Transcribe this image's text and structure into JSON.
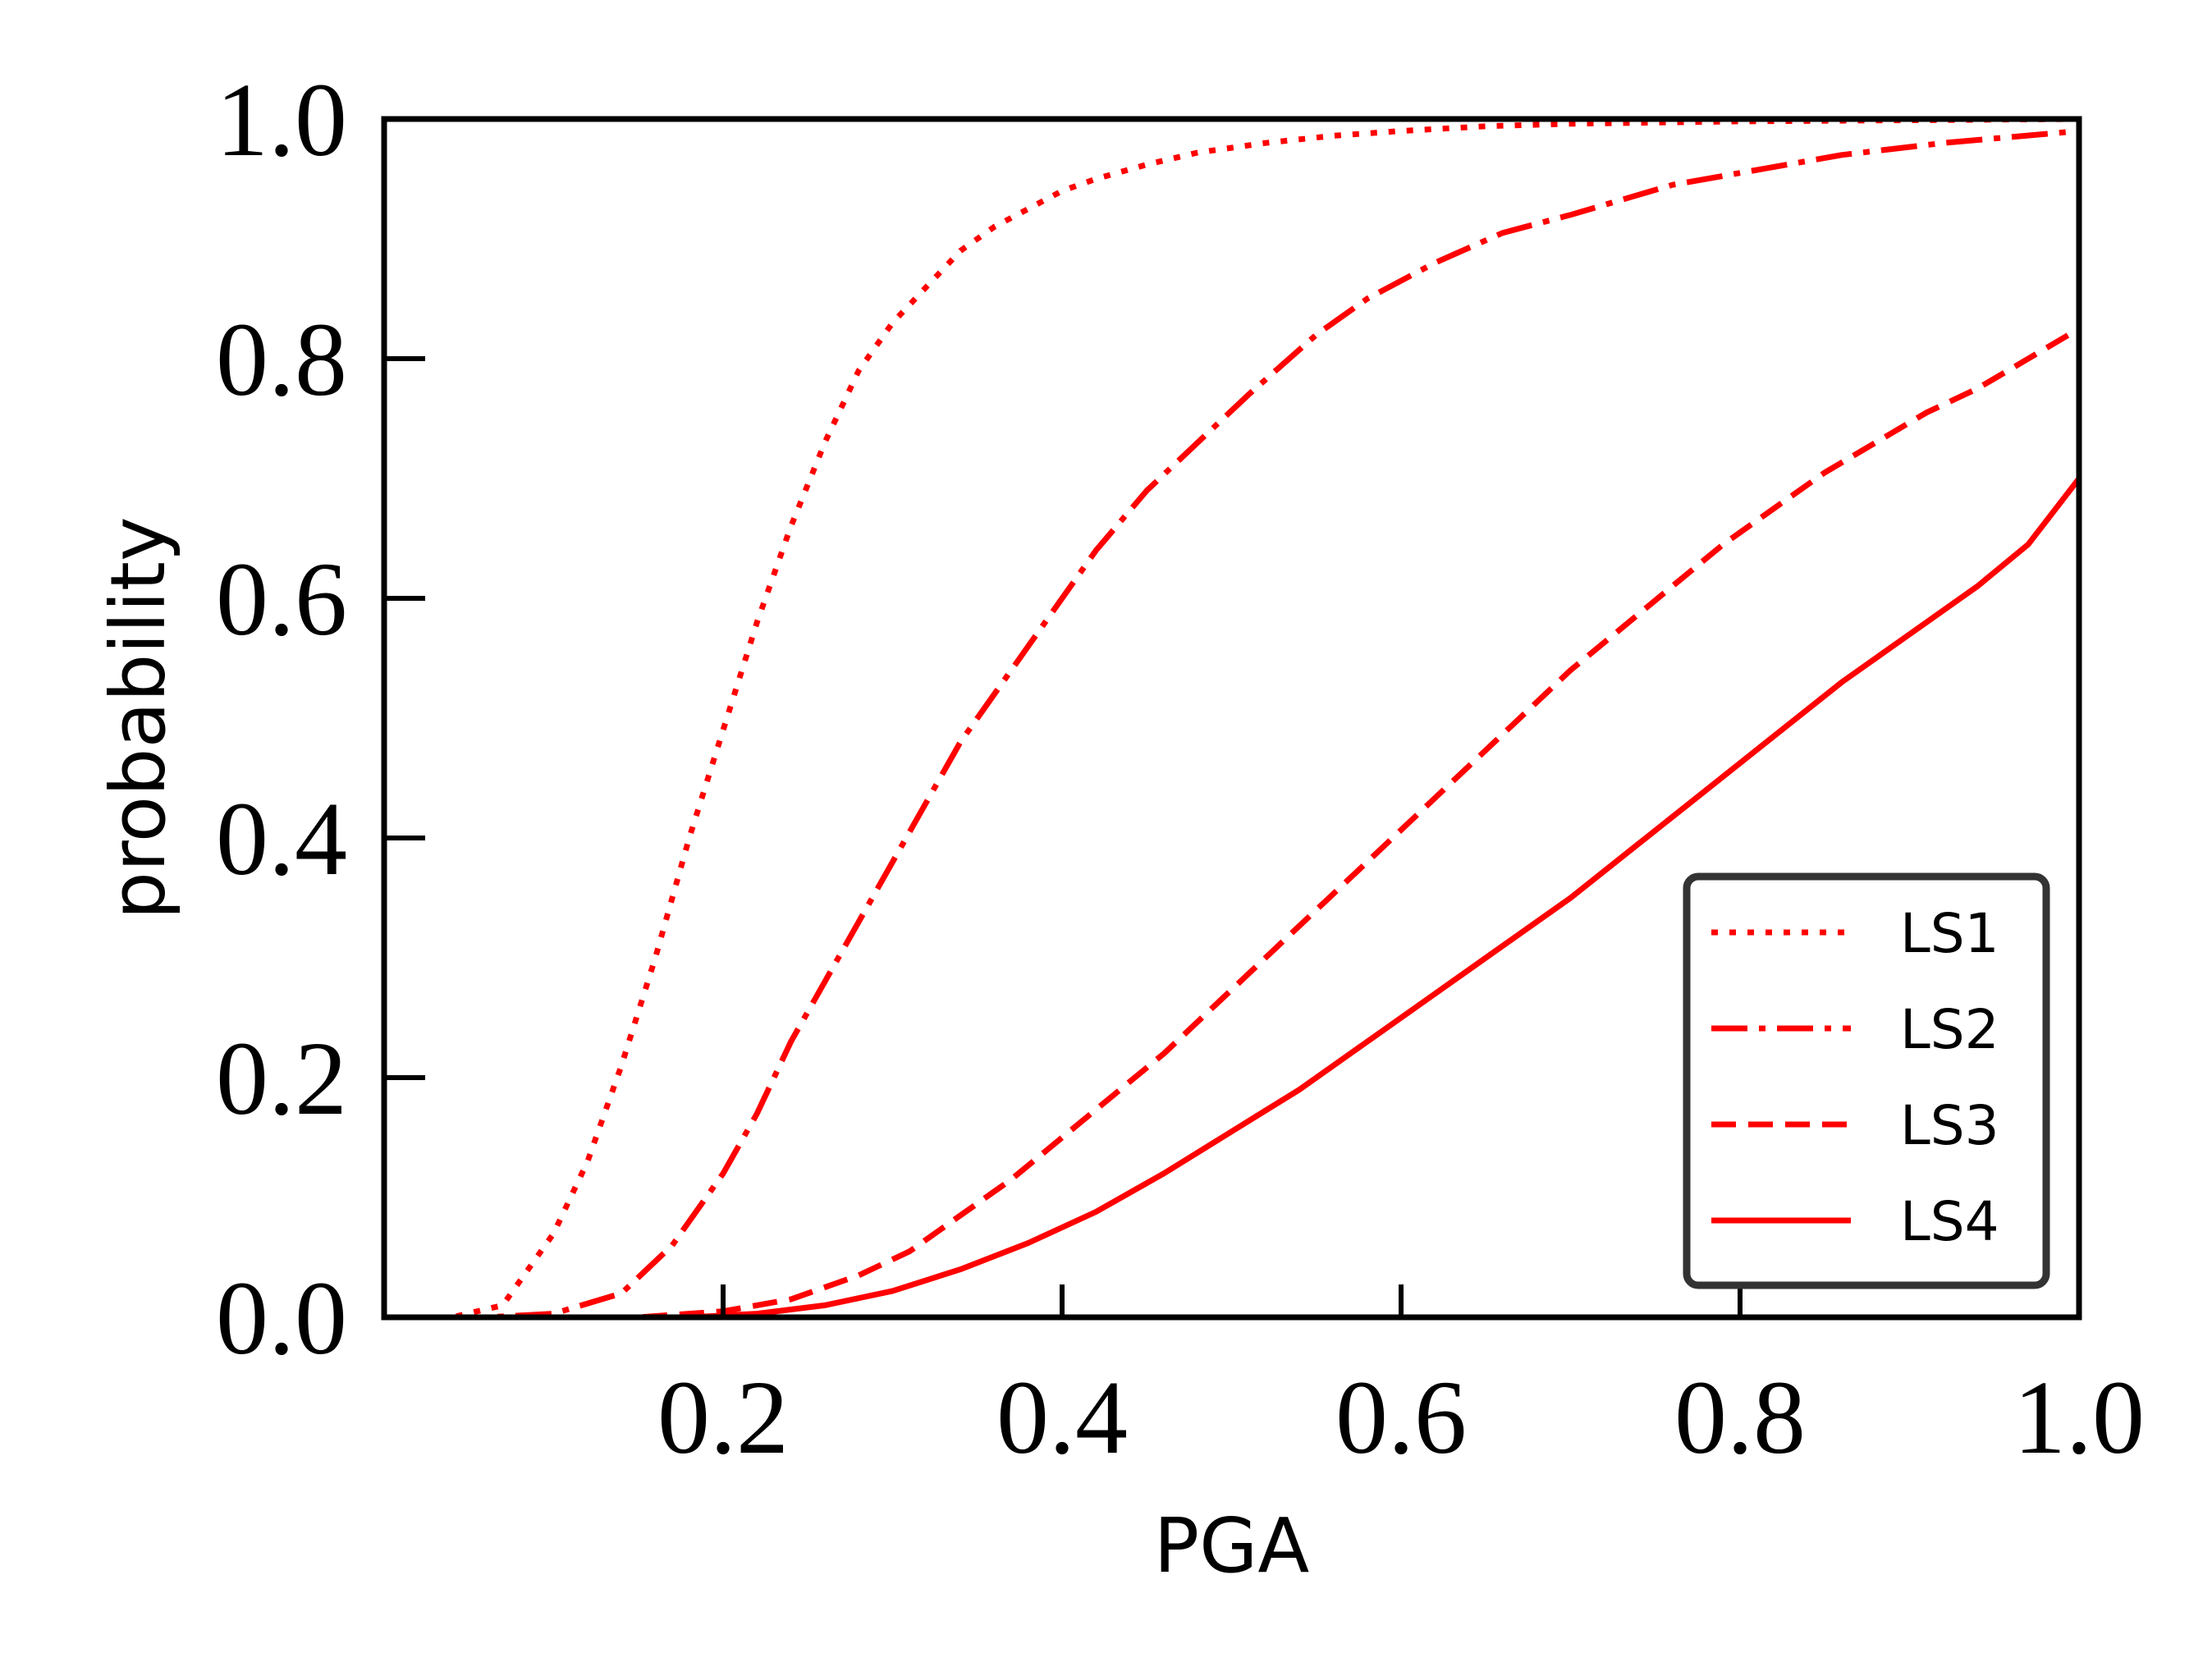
{
  "chart_data": {
    "type": "line",
    "xlabel": "PGA",
    "ylabel": "probability",
    "xlim": [
      0.0,
      1.0
    ],
    "ylim": [
      0.0,
      1.0
    ],
    "xticks": [
      0.2,
      0.4,
      0.6,
      0.8,
      1.0
    ],
    "xtick_labels": [
      "0.2",
      "0.4",
      "0.6",
      "0.8",
      "1.0"
    ],
    "yticks": [
      0.0,
      0.2,
      0.4,
      0.6,
      0.8,
      1.0
    ],
    "ytick_labels": [
      "0.0",
      "0.2",
      "0.4",
      "0.6",
      "0.8",
      "1.0"
    ],
    "grid": false,
    "legend_position": "lower right",
    "line_color": "#ff0000",
    "series": [
      {
        "name": "LS1",
        "style": "dotted",
        "x": [
          0.0,
          0.04,
          0.07,
          0.1,
          0.12,
          0.14,
          0.16,
          0.18,
          0.2,
          0.22,
          0.24,
          0.26,
          0.28,
          0.3,
          0.32,
          0.34,
          0.36,
          0.38,
          0.4,
          0.42,
          0.45,
          0.48,
          0.52,
          0.56,
          0.6,
          0.65,
          0.7,
          0.8,
          0.9,
          1.0
        ],
        "y": [
          0.0,
          0.0,
          0.01,
          0.07,
          0.13,
          0.21,
          0.3,
          0.4,
          0.49,
          0.58,
          0.66,
          0.73,
          0.79,
          0.83,
          0.86,
          0.89,
          0.91,
          0.925,
          0.94,
          0.95,
          0.962,
          0.972,
          0.98,
          0.986,
          0.99,
          0.994,
          0.996,
          0.998,
          0.999,
          1.0
        ]
      },
      {
        "name": "LS2",
        "style": "dashdot",
        "x": [
          0.0,
          0.06,
          0.1,
          0.14,
          0.17,
          0.2,
          0.22,
          0.24,
          0.26,
          0.28,
          0.3,
          0.32,
          0.34,
          0.36,
          0.38,
          0.4,
          0.42,
          0.45,
          0.48,
          0.51,
          0.55,
          0.58,
          0.62,
          0.66,
          0.7,
          0.76,
          0.8,
          0.86,
          0.92,
          1.0
        ],
        "y": [
          0.0,
          0.0,
          0.003,
          0.02,
          0.06,
          0.12,
          0.17,
          0.23,
          0.28,
          0.33,
          0.38,
          0.43,
          0.48,
          0.52,
          0.56,
          0.6,
          0.64,
          0.69,
          0.73,
          0.77,
          0.82,
          0.85,
          0.88,
          0.905,
          0.92,
          0.945,
          0.955,
          0.97,
          0.98,
          0.99
        ]
      },
      {
        "name": "LS3",
        "style": "dashed",
        "x": [
          0.0,
          0.15,
          0.2,
          0.24,
          0.28,
          0.31,
          0.34,
          0.37,
          0.4,
          0.43,
          0.46,
          0.49,
          0.52,
          0.55,
          0.58,
          0.61,
          0.64,
          0.67,
          0.7,
          0.73,
          0.76,
          0.79,
          0.82,
          0.85,
          0.88,
          0.91,
          0.94,
          0.97,
          1.0
        ],
        "y": [
          0.0,
          0.0,
          0.005,
          0.015,
          0.035,
          0.055,
          0.085,
          0.115,
          0.15,
          0.185,
          0.22,
          0.26,
          0.3,
          0.34,
          0.38,
          0.42,
          0.46,
          0.5,
          0.54,
          0.575,
          0.61,
          0.645,
          0.675,
          0.705,
          0.73,
          0.755,
          0.775,
          0.8,
          0.825
        ]
      },
      {
        "name": "LS4",
        "style": "solid",
        "x": [
          0.0,
          0.18,
          0.22,
          0.26,
          0.3,
          0.34,
          0.38,
          0.42,
          0.46,
          0.5,
          0.54,
          0.58,
          0.62,
          0.66,
          0.7,
          0.74,
          0.78,
          0.82,
          0.86,
          0.9,
          0.94,
          0.97,
          1.0
        ],
        "y": [
          0.0,
          0.0,
          0.003,
          0.01,
          0.022,
          0.04,
          0.062,
          0.088,
          0.12,
          0.155,
          0.19,
          0.23,
          0.27,
          0.31,
          0.35,
          0.395,
          0.44,
          0.485,
          0.53,
          0.57,
          0.61,
          0.645,
          0.7
        ]
      }
    ]
  }
}
